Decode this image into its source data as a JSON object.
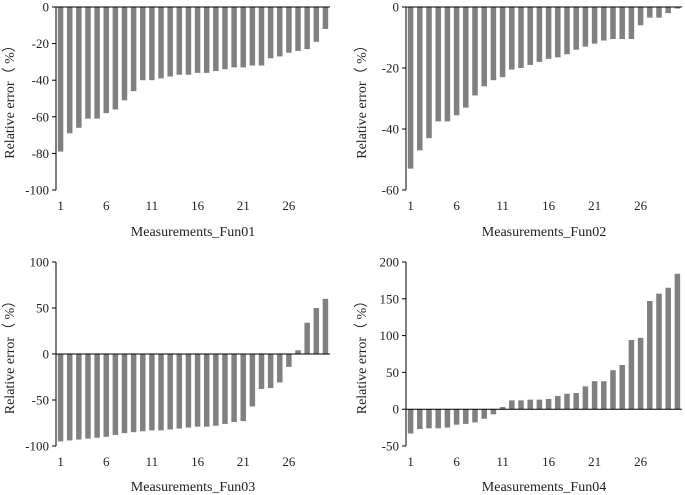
{
  "colors": {
    "bar": "#808080",
    "axis": "#000000",
    "text": "#222222",
    "background": "#ffffff"
  },
  "chart_data": [
    {
      "type": "bar",
      "xlabel": "Measurements_Fun01",
      "ylabel": "Relative error（ %）",
      "ylim": [
        -100,
        0
      ],
      "yticks": [
        0,
        -20,
        -40,
        -60,
        -80,
        -100
      ],
      "xticks": [
        1,
        6,
        11,
        16,
        21,
        26
      ],
      "categories": [
        1,
        2,
        3,
        4,
        5,
        6,
        7,
        8,
        9,
        10,
        11,
        12,
        13,
        14,
        15,
        16,
        17,
        18,
        19,
        20,
        21,
        22,
        23,
        24,
        25,
        26,
        27,
        28,
        29,
        30
      ],
      "values": [
        -79,
        -69,
        -66,
        -61,
        -61,
        -58,
        -56,
        -51,
        -46,
        -40,
        -40,
        -39,
        -38,
        -37,
        -37,
        -36,
        -36,
        -35,
        -34,
        -33,
        -33,
        -32,
        -32,
        -28,
        -27,
        -25,
        -24,
        -23,
        -19,
        -12
      ]
    },
    {
      "type": "bar",
      "xlabel": "Measurements_Fun02",
      "ylabel": "Relative error（ %）",
      "ylim": [
        -60,
        0
      ],
      "yticks": [
        0,
        -20,
        -40,
        -60
      ],
      "xticks": [
        1,
        6,
        11,
        16,
        21,
        26
      ],
      "categories": [
        1,
        2,
        3,
        4,
        5,
        6,
        7,
        8,
        9,
        10,
        11,
        12,
        13,
        14,
        15,
        16,
        17,
        18,
        19,
        20,
        21,
        22,
        23,
        24,
        25,
        26,
        27,
        28,
        29,
        30
      ],
      "values": [
        -53,
        -47,
        -43,
        -37.5,
        -37.5,
        -35.5,
        -33,
        -29,
        -26,
        -24,
        -23,
        -20.5,
        -20,
        -19,
        -18,
        -17,
        -16.5,
        -15.5,
        -14,
        -13,
        -12,
        -11,
        -10.5,
        -10.5,
        -10.5,
        -6,
        -3.5,
        -3.5,
        -2,
        -0.5
      ]
    },
    {
      "type": "bar",
      "xlabel": "Measurements_Fun03",
      "ylabel": "Relative error（ %）",
      "ylim": [
        -100,
        100
      ],
      "yticks": [
        100,
        50,
        0,
        -50,
        -100
      ],
      "xticks": [
        1,
        6,
        11,
        16,
        21,
        26
      ],
      "categories": [
        1,
        2,
        3,
        4,
        5,
        6,
        7,
        8,
        9,
        10,
        11,
        12,
        13,
        14,
        15,
        16,
        17,
        18,
        19,
        20,
        21,
        22,
        23,
        24,
        25,
        26,
        27,
        28,
        29,
        30
      ],
      "values": [
        -95,
        -94,
        -93,
        -92,
        -91,
        -90,
        -88,
        -86,
        -85,
        -84,
        -83,
        -83,
        -82,
        -81,
        -80,
        -79,
        -79,
        -78,
        -76,
        -74,
        -73,
        -57,
        -38,
        -37,
        -31,
        -14,
        4,
        34,
        50,
        60
      ]
    },
    {
      "type": "bar",
      "xlabel": "Measurements_Fun04",
      "ylabel": "Relative error（ %）",
      "ylim": [
        -50,
        200
      ],
      "yticks": [
        200,
        150,
        100,
        50,
        0,
        -50
      ],
      "xticks": [
        1,
        6,
        11,
        16,
        21,
        26
      ],
      "categories": [
        1,
        2,
        3,
        4,
        5,
        6,
        7,
        8,
        9,
        10,
        11,
        12,
        13,
        14,
        15,
        16,
        17,
        18,
        19,
        20,
        21,
        22,
        23,
        24,
        25,
        26,
        27,
        28,
        29,
        30
      ],
      "values": [
        -33,
        -27,
        -26,
        -26,
        -25,
        -21,
        -20,
        -18,
        -13,
        -7,
        3,
        12,
        12,
        13,
        13,
        14,
        18,
        21,
        22,
        31,
        38,
        38,
        53,
        60,
        94,
        97,
        147,
        157,
        165,
        184
      ]
    }
  ]
}
